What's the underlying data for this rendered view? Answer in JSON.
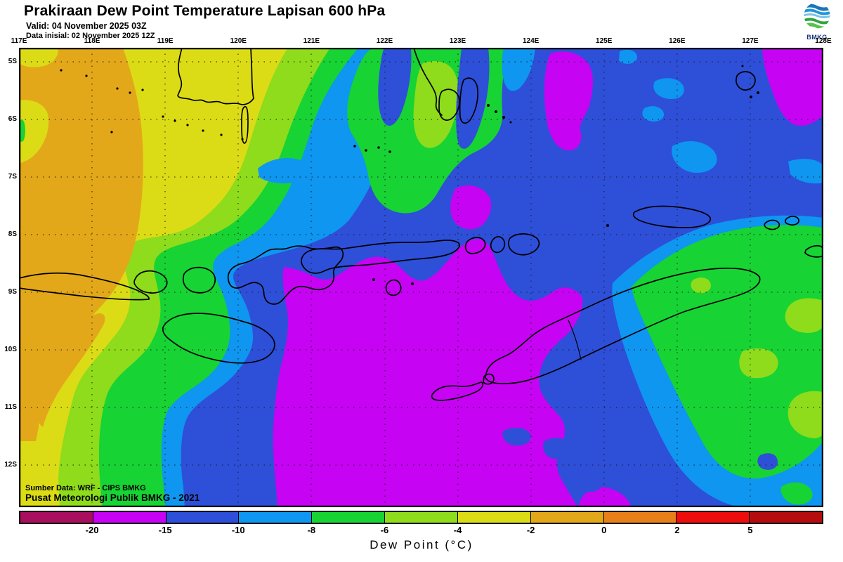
{
  "header": {
    "title": "Prakiraan Dew Point Temperature Lapisan 600 hPa",
    "valid": "Valid: 04 November 2025 03Z",
    "init": "Data inisial: 02 November 2025 12Z"
  },
  "logo": {
    "label": "BMKG"
  },
  "axes": {
    "lon_labels": [
      "117E",
      "118E",
      "119E",
      "120E",
      "121E",
      "122E",
      "123E",
      "124E",
      "125E",
      "126E",
      "127E",
      "128E"
    ],
    "lat_labels": [
      "5S",
      "6S",
      "7S",
      "8S",
      "9S",
      "10S",
      "11S",
      "12S"
    ]
  },
  "map_overlay": {
    "source_line1": "Sumber Data: WRF - CIPS BMKG",
    "source_line2": "Pusat Meteorologi Publik BMKG - 2021"
  },
  "colorbar": {
    "title": "Dew Point (°C)",
    "ticks": [
      "-20",
      "-15",
      "-10",
      "-8",
      "-6",
      "-4",
      "-2",
      "0",
      "2",
      "5"
    ],
    "segments": [
      "#a80f5f",
      "#c603f2",
      "#2e4fd8",
      "#0e96f0",
      "#17d334",
      "#8edc1b",
      "#dcdc16",
      "#e3a81a",
      "#e8801a",
      "#ee0d0d",
      "#b50d0d"
    ]
  },
  "palette": {
    "magenta_dark": "#a80f5f",
    "magenta": "#c603f2",
    "blue": "#2e4fd8",
    "cyan": "#0e96f0",
    "green": "#17d334",
    "yellow_green": "#8edc1b",
    "yellow": "#dcdc16",
    "gold": "#e3a81a",
    "orange": "#e8801a",
    "red": "#ee0d0d",
    "red_dark": "#b50d0d",
    "coastline": "#000000",
    "logo_blue": "#1b75bb",
    "logo_green": "#2fa53a"
  },
  "chart_data": {
    "type": "heatmap",
    "title": "Prakiraan Dew Point Temperature Lapisan 600 hPa",
    "xlabel_ticks": [
      "117E",
      "118E",
      "119E",
      "120E",
      "121E",
      "122E",
      "123E",
      "124E",
      "125E",
      "126E",
      "127E",
      "128E"
    ],
    "ylabel_ticks": [
      "5S",
      "6S",
      "7S",
      "8S",
      "9S",
      "10S",
      "11S",
      "12S"
    ],
    "legend_title": "Dew Point (°C)",
    "scale_levels": [
      -20,
      -15,
      -10,
      -8,
      -6,
      -4,
      -2,
      0,
      2,
      5
    ],
    "scale_colors": [
      "#a80f5f",
      "#c603f2",
      "#2e4fd8",
      "#0e96f0",
      "#17d334",
      "#8edc1b",
      "#dcdc16",
      "#e3a81a",
      "#e8801a",
      "#ee0d0d",
      "#b50d0d"
    ]
  }
}
